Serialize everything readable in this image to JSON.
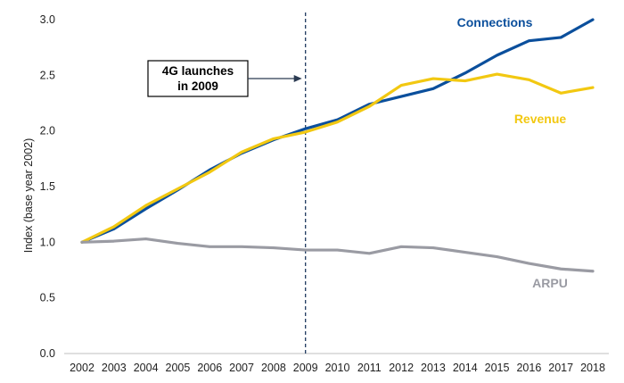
{
  "chart_data": {
    "type": "line",
    "x": [
      "2002",
      "2003",
      "2004",
      "2005",
      "2006",
      "2007",
      "2008",
      "2009",
      "2010",
      "2011",
      "2012",
      "2013",
      "2014",
      "2015",
      "2016",
      "2017",
      "2018"
    ],
    "series": [
      {
        "name": "Connections",
        "color": "#0b4f9c",
        "values": [
          1.0,
          1.12,
          1.3,
          1.47,
          1.65,
          1.8,
          1.92,
          2.02,
          2.1,
          2.24,
          2.31,
          2.38,
          2.52,
          2.68,
          2.81,
          2.84,
          3.0
        ]
      },
      {
        "name": "Revenue",
        "color": "#f2c811",
        "values": [
          1.0,
          1.14,
          1.33,
          1.48,
          1.63,
          1.81,
          1.93,
          1.99,
          2.08,
          2.22,
          2.41,
          2.47,
          2.45,
          2.51,
          2.46,
          2.34,
          2.39
        ]
      },
      {
        "name": "ARPU",
        "color": "#9a9ba3",
        "values": [
          1.0,
          1.01,
          1.03,
          0.99,
          0.96,
          0.96,
          0.95,
          0.93,
          0.93,
          0.9,
          0.96,
          0.95,
          0.91,
          0.87,
          0.81,
          0.76,
          0.74
        ]
      }
    ],
    "ylabel": "Index (base year 2002)",
    "ylim": [
      0,
      3.0
    ],
    "yticks": [
      "0.0",
      "0.5",
      "1.0",
      "1.5",
      "2.0",
      "2.5",
      "3.0"
    ],
    "grid": false,
    "annotation": {
      "text_line1": "4G launches",
      "text_line2": "in 2009",
      "x": "2009"
    }
  }
}
